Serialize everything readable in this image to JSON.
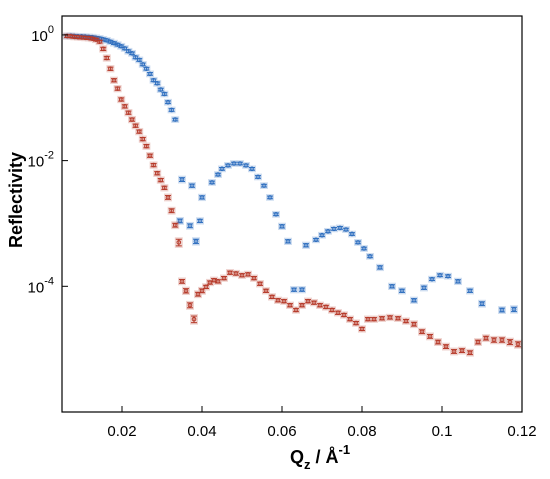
{
  "chart_data": {
    "type": "scatter",
    "ylabel": "Reflectivity",
    "xlabel": {
      "base": "Q",
      "sub": "z",
      "sep": " / Å",
      "sup": "-1"
    },
    "xlim": [
      0.005,
      0.12
    ],
    "ylim": [
      1e-06,
      2
    ],
    "yscale": "log",
    "grid": false,
    "x_ticks": [
      0.02,
      0.04,
      0.06,
      0.08,
      0.1,
      0.12
    ],
    "x_tick_labels": [
      "0.02",
      "0.04",
      "0.06",
      "0.08",
      "0.1",
      "0.12"
    ],
    "y_ticks": [
      1,
      0.01,
      0.0001
    ],
    "y_tick_labels": [
      {
        "base": "10",
        "exp": "0"
      },
      {
        "base": "10",
        "exp": "-2"
      },
      {
        "base": "10",
        "exp": "-4"
      }
    ],
    "series": [
      {
        "color": "#2f6fbf",
        "points": [
          [
            0.0063,
            0.96,
            0.05
          ],
          [
            0.0072,
            0.97,
            0.05
          ],
          [
            0.0081,
            0.96,
            0.05
          ],
          [
            0.009,
            0.95,
            0.05
          ],
          [
            0.0099,
            0.95,
            0.05
          ],
          [
            0.0108,
            0.94,
            0.05
          ],
          [
            0.0117,
            0.93,
            0.05
          ],
          [
            0.0126,
            0.92,
            0.05
          ],
          [
            0.0135,
            0.9,
            0.05
          ],
          [
            0.0144,
            0.88,
            0.05
          ],
          [
            0.0153,
            0.85,
            0.05
          ],
          [
            0.0162,
            0.82,
            0.05
          ],
          [
            0.0171,
            0.78,
            0.05
          ],
          [
            0.018,
            0.74,
            0.05
          ],
          [
            0.0189,
            0.7,
            0.05
          ],
          [
            0.0198,
            0.66,
            0.05
          ],
          [
            0.0207,
            0.61,
            0.05
          ],
          [
            0.0216,
            0.55,
            0.05
          ],
          [
            0.0225,
            0.51,
            0.05
          ],
          [
            0.0234,
            0.44,
            0.05
          ],
          [
            0.0243,
            0.4,
            0.05
          ],
          [
            0.0252,
            0.34,
            0.05
          ],
          [
            0.0261,
            0.29,
            0.05
          ],
          [
            0.027,
            0.24,
            0.05
          ],
          [
            0.0279,
            0.19,
            0.05
          ],
          [
            0.0288,
            0.17,
            0.05
          ],
          [
            0.0297,
            0.135,
            0.05
          ],
          [
            0.0306,
            0.115,
            0.05
          ],
          [
            0.0315,
            0.085,
            0.05
          ],
          [
            0.0324,
            0.064,
            0.05
          ],
          [
            0.0333,
            0.045,
            0.05
          ],
          [
            0.035,
            0.005,
            0.07
          ],
          [
            0.0375,
            0.004,
            0.06
          ],
          [
            0.04,
            0.0026,
            0.06
          ],
          [
            0.0425,
            0.0045,
            0.05
          ],
          [
            0.044,
            0.006,
            0.05
          ],
          [
            0.045,
            0.0074,
            0.05
          ],
          [
            0.0465,
            0.0084,
            0.05
          ],
          [
            0.048,
            0.009,
            0.05
          ],
          [
            0.0495,
            0.009,
            0.05
          ],
          [
            0.051,
            0.0084,
            0.05
          ],
          [
            0.0525,
            0.0074,
            0.05
          ],
          [
            0.054,
            0.0055,
            0.05
          ],
          [
            0.0555,
            0.004,
            0.05
          ],
          [
            0.057,
            0.0026,
            0.05
          ],
          [
            0.0585,
            0.0014,
            0.05
          ],
          [
            0.06,
            0.0009,
            0.06
          ],
          [
            0.0615,
            0.00052,
            0.06
          ],
          [
            0.0345,
            0.0011,
            0.07
          ],
          [
            0.037,
            0.00092,
            0.07
          ],
          [
            0.0385,
            0.00052,
            0.08
          ],
          [
            0.0395,
            0.0011,
            0.06
          ],
          [
            0.066,
            0.00045,
            0.06
          ],
          [
            0.0685,
            0.00055,
            0.05
          ],
          [
            0.07,
            0.00065,
            0.05
          ],
          [
            0.0715,
            0.00075,
            0.05
          ],
          [
            0.073,
            0.00082,
            0.05
          ],
          [
            0.0745,
            0.00085,
            0.05
          ],
          [
            0.076,
            0.0008,
            0.05
          ],
          [
            0.0775,
            0.00068,
            0.05
          ],
          [
            0.079,
            0.0005,
            0.05
          ],
          [
            0.0805,
            0.0004,
            0.05
          ],
          [
            0.082,
            0.0003,
            0.05
          ],
          [
            0.0845,
            0.0002,
            0.06
          ],
          [
            0.0875,
            0.0001,
            0.06
          ],
          [
            0.09,
            8.5e-05,
            0.06
          ],
          [
            0.093,
            6e-05,
            0.06
          ],
          [
            0.0955,
            9.5e-05,
            0.06
          ],
          [
            0.0975,
            0.00013,
            0.05
          ],
          [
            0.0995,
            0.00015,
            0.05
          ],
          [
            0.1015,
            0.000145,
            0.05
          ],
          [
            0.104,
            0.00012,
            0.06
          ],
          [
            0.107,
            8.5e-05,
            0.06
          ],
          [
            0.11,
            5.3e-05,
            0.07
          ],
          [
            0.115,
            4.2e-05,
            0.07
          ],
          [
            0.118,
            4.3e-05,
            0.08
          ],
          [
            0.063,
            8.85e-05,
            0.06
          ],
          [
            0.065,
            8.86e-05,
            0.06
          ]
        ]
      },
      {
        "color": "#b63a2a",
        "points": [
          [
            0.0063,
            0.96,
            0.05
          ],
          [
            0.0072,
            0.95,
            0.05
          ],
          [
            0.0081,
            0.93,
            0.05
          ],
          [
            0.009,
            0.92,
            0.05
          ],
          [
            0.0099,
            0.91,
            0.05
          ],
          [
            0.0108,
            0.9,
            0.05
          ],
          [
            0.0117,
            0.89,
            0.05
          ],
          [
            0.0126,
            0.87,
            0.05
          ],
          [
            0.0135,
            0.84,
            0.05
          ],
          [
            0.0144,
            0.78,
            0.05
          ],
          [
            0.0153,
            0.6,
            0.06
          ],
          [
            0.0162,
            0.43,
            0.06
          ],
          [
            0.0171,
            0.29,
            0.06
          ],
          [
            0.018,
            0.19,
            0.06
          ],
          [
            0.0189,
            0.14,
            0.06
          ],
          [
            0.0198,
            0.094,
            0.06
          ],
          [
            0.0207,
            0.073,
            0.06
          ],
          [
            0.0216,
            0.058,
            0.06
          ],
          [
            0.0225,
            0.045,
            0.06
          ],
          [
            0.0234,
            0.036,
            0.06
          ],
          [
            0.0243,
            0.029,
            0.06
          ],
          [
            0.0252,
            0.022,
            0.06
          ],
          [
            0.0261,
            0.017,
            0.06
          ],
          [
            0.027,
            0.012,
            0.06
          ],
          [
            0.0279,
            0.0085,
            0.06
          ],
          [
            0.0288,
            0.0063,
            0.06
          ],
          [
            0.0297,
            0.0049,
            0.06
          ],
          [
            0.0306,
            0.0037,
            0.06
          ],
          [
            0.0315,
            0.0026,
            0.07
          ],
          [
            0.0324,
            0.0016,
            0.07
          ],
          [
            0.0333,
            0.00094,
            0.07
          ],
          [
            0.0342,
            0.0005,
            0.12
          ],
          [
            0.035,
            0.00012,
            0.07
          ],
          [
            0.036,
            8.5e-05,
            0.08
          ],
          [
            0.037,
            5e-05,
            0.09
          ],
          [
            0.038,
            3e-05,
            0.12
          ],
          [
            0.039,
            7.5e-05,
            0.07
          ],
          [
            0.04,
            8.5e-05,
            0.07
          ],
          [
            0.041,
            9.8e-05,
            0.06
          ],
          [
            0.042,
            0.000115,
            0.06
          ],
          [
            0.043,
            0.000125,
            0.06
          ],
          [
            0.044,
            0.00012,
            0.06
          ],
          [
            0.0455,
            0.000135,
            0.06
          ],
          [
            0.047,
            0.000165,
            0.06
          ],
          [
            0.0485,
            0.00016,
            0.06
          ],
          [
            0.05,
            0.00015,
            0.06
          ],
          [
            0.0515,
            0.000155,
            0.06
          ],
          [
            0.053,
            0.000135,
            0.06
          ],
          [
            0.0545,
            0.00011,
            0.06
          ],
          [
            0.056,
            8.5e-05,
            0.06
          ],
          [
            0.0575,
            6.8e-05,
            0.06
          ],
          [
            0.059,
            6e-05,
            0.06
          ],
          [
            0.0605,
            5.8e-05,
            0.06
          ],
          [
            0.062,
            5e-05,
            0.06
          ],
          [
            0.0635,
            4.2e-05,
            0.06
          ],
          [
            0.065,
            5e-05,
            0.06
          ],
          [
            0.0665,
            5.8e-05,
            0.06
          ],
          [
            0.068,
            5.5e-05,
            0.06
          ],
          [
            0.0695,
            5e-05,
            0.06
          ],
          [
            0.071,
            4.7e-05,
            0.06
          ],
          [
            0.0725,
            4.2e-05,
            0.06
          ],
          [
            0.074,
            3.8e-05,
            0.06
          ],
          [
            0.0755,
            3.5e-05,
            0.06
          ],
          [
            0.077,
            3e-05,
            0.06
          ],
          [
            0.0785,
            2.6e-05,
            0.06
          ],
          [
            0.08,
            2.1e-05,
            0.06
          ],
          [
            0.0815,
            3e-05,
            0.06
          ],
          [
            0.083,
            3e-05,
            0.06
          ],
          [
            0.085,
            3.1e-05,
            0.06
          ],
          [
            0.087,
            3.2e-05,
            0.06
          ],
          [
            0.089,
            3.1e-05,
            0.06
          ],
          [
            0.091,
            2.8e-05,
            0.06
          ],
          [
            0.093,
            2.5e-05,
            0.07
          ],
          [
            0.095,
            1.9e-05,
            0.07
          ],
          [
            0.097,
            1.6e-05,
            0.07
          ],
          [
            0.099,
            1.3e-05,
            0.07
          ],
          [
            0.101,
            1.1e-05,
            0.07
          ],
          [
            0.103,
            9.2e-06,
            0.07
          ],
          [
            0.105,
            9.5e-06,
            0.07
          ],
          [
            0.107,
            8.8e-06,
            0.07
          ],
          [
            0.109,
            1.3e-05,
            0.07
          ],
          [
            0.111,
            1.5e-05,
            0.07
          ],
          [
            0.113,
            1.4e-05,
            0.08
          ],
          [
            0.115,
            1.4e-05,
            0.08
          ],
          [
            0.117,
            1.3e-05,
            0.09
          ],
          [
            0.119,
            1.2e-05,
            0.09
          ]
        ]
      }
    ]
  }
}
